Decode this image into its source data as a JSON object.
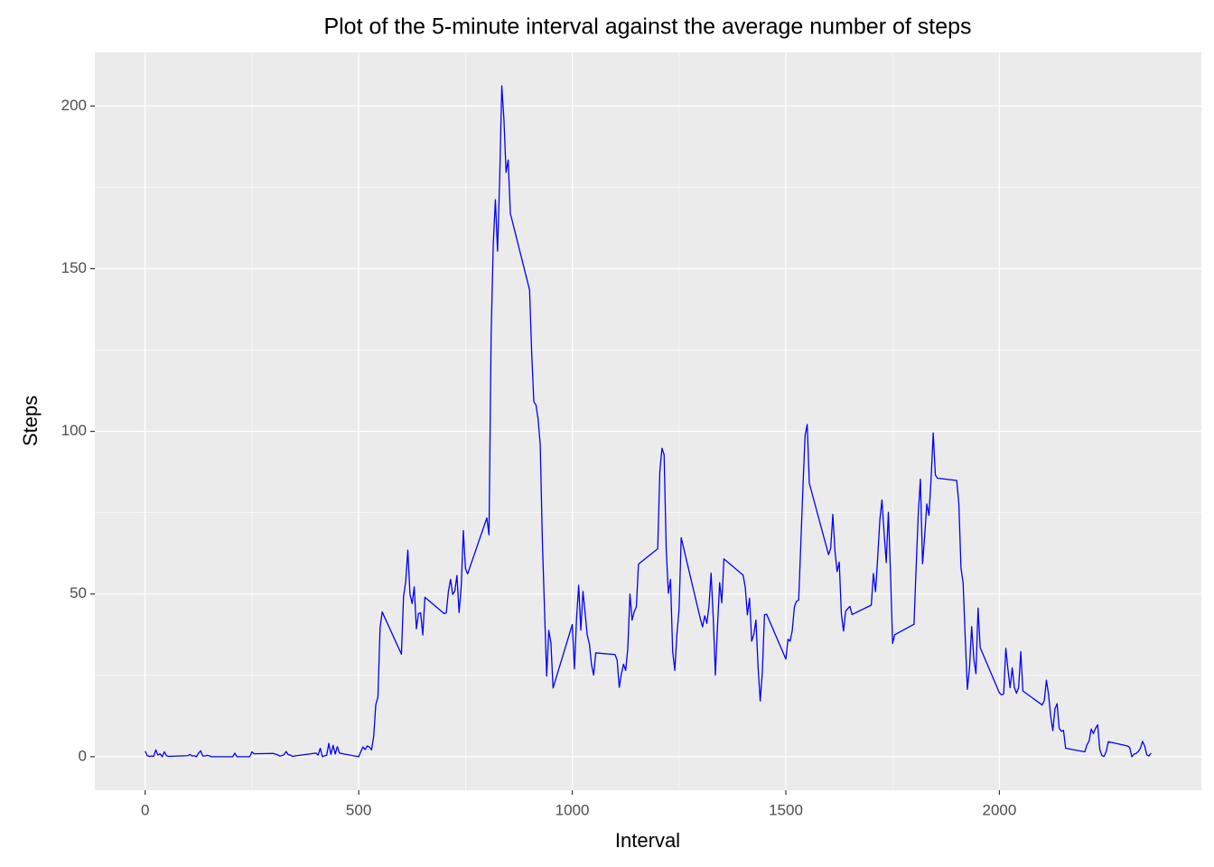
{
  "chart_data": {
    "type": "line",
    "title": "Plot of the 5-minute interval against the average number of steps",
    "x_label": "Interval",
    "y_label": "Steps",
    "color": "#0000ff",
    "grid": true,
    "xlim": [
      -117.75,
      2472.75
    ],
    "xticks": [
      0,
      500,
      1000,
      1500,
      2000
    ],
    "ylim": [
      -10.31,
      216.48
    ],
    "yticks": [
      0,
      50,
      100,
      150,
      200
    ],
    "x": [
      0,
      5,
      10,
      15,
      20,
      25,
      30,
      35,
      40,
      45,
      50,
      55,
      100,
      105,
      110,
      115,
      120,
      125,
      130,
      135,
      140,
      145,
      150,
      155,
      200,
      205,
      210,
      215,
      220,
      225,
      230,
      235,
      240,
      245,
      250,
      255,
      300,
      305,
      310,
      315,
      320,
      325,
      330,
      335,
      340,
      345,
      350,
      355,
      400,
      405,
      410,
      415,
      420,
      425,
      430,
      435,
      440,
      445,
      450,
      455,
      500,
      505,
      510,
      515,
      520,
      525,
      530,
      535,
      540,
      545,
      550,
      555,
      600,
      605,
      610,
      615,
      620,
      625,
      630,
      635,
      640,
      645,
      650,
      655,
      700,
      705,
      710,
      715,
      720,
      725,
      730,
      735,
      740,
      745,
      750,
      755,
      800,
      805,
      810,
      815,
      820,
      825,
      830,
      835,
      840,
      845,
      850,
      855,
      900,
      905,
      910,
      915,
      920,
      925,
      930,
      935,
      940,
      945,
      950,
      955,
      1000,
      1005,
      1010,
      1015,
      1020,
      1025,
      1030,
      1035,
      1040,
      1045,
      1050,
      1055,
      1100,
      1105,
      1110,
      1115,
      1120,
      1125,
      1130,
      1135,
      1140,
      1145,
      1150,
      1155,
      1200,
      1205,
      1210,
      1215,
      1220,
      1225,
      1230,
      1235,
      1240,
      1245,
      1250,
      1255,
      1300,
      1305,
      1310,
      1315,
      1320,
      1325,
      1330,
      1335,
      1340,
      1345,
      1350,
      1355,
      1400,
      1405,
      1410,
      1415,
      1420,
      1425,
      1430,
      1435,
      1440,
      1445,
      1450,
      1455,
      1500,
      1505,
      1510,
      1515,
      1520,
      1525,
      1530,
      1535,
      1540,
      1545,
      1550,
      1555,
      1600,
      1605,
      1610,
      1615,
      1620,
      1625,
      1630,
      1635,
      1640,
      1645,
      1650,
      1655,
      1700,
      1705,
      1710,
      1715,
      1720,
      1725,
      1730,
      1735,
      1740,
      1745,
      1750,
      1755,
      1800,
      1805,
      1810,
      1815,
      1820,
      1825,
      1830,
      1835,
      1840,
      1845,
      1850,
      1855,
      1900,
      1905,
      1910,
      1915,
      1920,
      1925,
      1930,
      1935,
      1940,
      1945,
      1950,
      1955,
      2000,
      2005,
      2010,
      2015,
      2020,
      2025,
      2030,
      2035,
      2040,
      2045,
      2050,
      2055,
      2100,
      2105,
      2110,
      2115,
      2120,
      2125,
      2130,
      2135,
      2140,
      2145,
      2150,
      2155,
      2200,
      2205,
      2210,
      2215,
      2220,
      2225,
      2230,
      2235,
      2240,
      2245,
      2250,
      2255,
      2300,
      2305,
      2310,
      2315,
      2320,
      2325,
      2330,
      2335,
      2340,
      2345,
      2350,
      2355
    ],
    "values": [
      1.7,
      0.3,
      0.1,
      0.2,
      0.1,
      2.1,
      0.5,
      0.9,
      0,
      1.5,
      0.3,
      0.1,
      0.3,
      0.7,
      0.2,
      0.3,
      0,
      1.1,
      1.8,
      0.2,
      0.2,
      0.4,
      0.3,
      0,
      0,
      0,
      1.1,
      0,
      0,
      0,
      0,
      0,
      0,
      0,
      1.5,
      0.9,
      1.0,
      0.8,
      0.6,
      0.2,
      0.3,
      0.6,
      1.6,
      0.6,
      0.5,
      0.1,
      0.2,
      0.3,
      1.1,
      0.5,
      2.6,
      0,
      0.3,
      0.4,
      4.1,
      0.7,
      3.5,
      0.8,
      3.1,
      1.1,
      0,
      1.6,
      3.0,
      2.2,
      3.3,
      3.0,
      2.1,
      6.1,
      16.0,
      18.3,
      39.5,
      44.5,
      31.5,
      49.3,
      53.8,
      63.5,
      50.0,
      47.1,
      52.2,
      39.3,
      44.0,
      44.2,
      37.4,
      49.0,
      44.0,
      44.2,
      50.8,
      54.5,
      49.9,
      50.9,
      55.7,
      44.3,
      52.3,
      69.5,
      57.8,
      56.2,
      73.4,
      68.2,
      129.4,
      157.5,
      171.2,
      155.4,
      177.3,
      206.2,
      195.9,
      179.6,
      183.4,
      167.0,
      143.5,
      124.0,
      109.1,
      108.1,
      103.7,
      95.9,
      66.2,
      45.2,
      24.8,
      38.8,
      35.0,
      21.1,
      40.6,
      27.0,
      42.4,
      52.7,
      38.9,
      50.8,
      44.3,
      37.4,
      34.7,
      28.3,
      25.1,
      31.9,
      31.4,
      29.7,
      21.3,
      25.5,
      28.4,
      26.5,
      33.4,
      50.0,
      42.0,
      44.6,
      46.0,
      59.2,
      63.9,
      87.7,
      94.8,
      92.8,
      63.4,
      50.2,
      54.5,
      32.4,
      26.5,
      37.7,
      45.1,
      67.3,
      42.3,
      39.9,
      43.3,
      41.0,
      46.2,
      56.4,
      42.8,
      25.1,
      40.0,
      53.5,
      47.3,
      60.8,
      55.8,
      52.0,
      43.6,
      48.7,
      35.5,
      37.6,
      42.0,
      27.5,
      17.1,
      26.1,
      43.6,
      43.8,
      30.0,
      36.1,
      35.5,
      38.8,
      46.0,
      47.8,
      48.1,
      65.3,
      82.9,
      98.7,
      102.1,
      84.0,
      62.1,
      64.1,
      74.5,
      63.2,
      56.9,
      59.8,
      43.9,
      38.6,
      44.7,
      45.5,
      46.2,
      43.7,
      46.6,
      56.3,
      50.7,
      61.2,
      72.7,
      78.9,
      68.9,
      59.7,
      75.1,
      56.5,
      34.8,
      37.5,
      40.7,
      58.0,
      74.7,
      85.3,
      59.3,
      67.8,
      77.7,
      74.2,
      85.3,
      99.5,
      86.6,
      85.6,
      84.9,
      77.8,
      58.0,
      53.4,
      36.3,
      20.7,
      27.4,
      40.0,
      30.2,
      25.5,
      45.7,
      33.5,
      19.6,
      19.0,
      19.3,
      33.3,
      26.8,
      21.2,
      27.3,
      21.3,
      19.5,
      21.3,
      32.3,
      20.2,
      15.9,
      17.2,
      23.5,
      19.2,
      12.5,
      8.0,
      14.7,
      16.3,
      8.7,
      7.8,
      8.1,
      2.6,
      1.5,
      3.7,
      4.8,
      8.5,
      7.1,
      8.7,
      9.8,
      2.2,
      0.3,
      0.1,
      1.6,
      4.6,
      3.3,
      2.8,
      0,
      0.8,
      1.0,
      1.6,
      2.6,
      4.7,
      3.3,
      0.6,
      0.2,
      1.1
    ]
  }
}
